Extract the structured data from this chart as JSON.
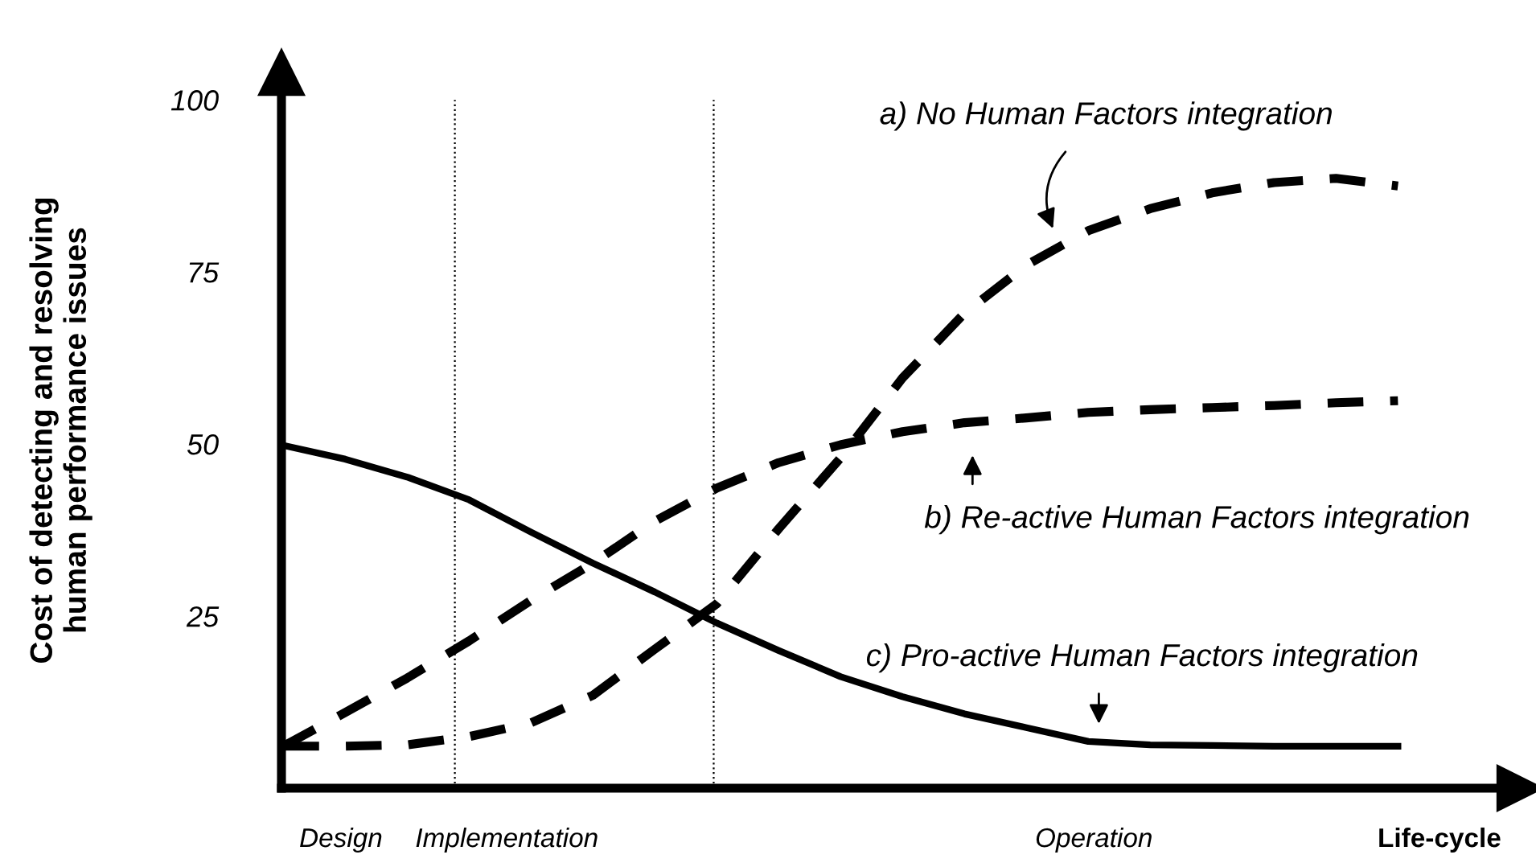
{
  "chart_data": {
    "type": "line",
    "ylabel": "Cost of detecting and resolving\nhuman performance issues",
    "xlabel": "Life-cycle",
    "categories": [
      null,
      null,
      null,
      null,
      null,
      null,
      null,
      null,
      null,
      null,
      null,
      null,
      null,
      null,
      null,
      null,
      null,
      null,
      null
    ],
    "ylim": [
      0,
      104
    ],
    "yticks": [
      25,
      50,
      75,
      100
    ],
    "grid": false,
    "legend": false,
    "marker": "none",
    "series": [
      {
        "color": "#000000",
        "line_style": "dashed",
        "values": [
          6.1,
          6.1,
          6.3,
          7.5,
          9.5,
          13.5,
          20.2,
          26.8,
          37.7,
          48,
          59.6,
          69,
          76,
          81,
          84.2,
          86.5,
          88,
          88.6,
          87.5
        ]
      },
      {
        "color": "#000000",
        "line_style": "dashed",
        "values": [
          6.1,
          11,
          16,
          21.4,
          27.3,
          32.7,
          38.8,
          43.6,
          47.3,
          49.9,
          51.8,
          53.1,
          53.8,
          54.6,
          55,
          55.3,
          55.6,
          56,
          56.3
        ]
      },
      {
        "color": "#000000",
        "line_style": "solid",
        "values": [
          49.8,
          47.8,
          45.2,
          41.9,
          37.2,
          32.7,
          28.5,
          24,
          20,
          16.2,
          13.3,
          10.8,
          8.8,
          6.8,
          6.3,
          6.2,
          6.1,
          6.1,
          6.1
        ]
      }
    ],
    "annotations": [
      "a) No Human Factors integration",
      "b) Re-active Human Factors integration",
      "c) Pro-active Human Factors integration",
      "Design",
      "Implementation",
      "Operation"
    ]
  }
}
